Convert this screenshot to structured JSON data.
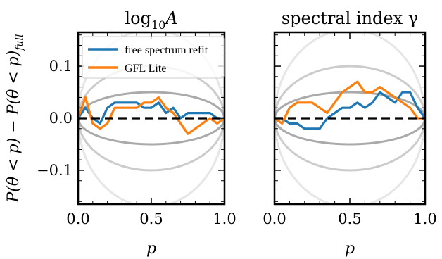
{
  "ylabel": "P(θ < p) − P(θ < p)",
  "ylabel_sub": "full",
  "chart_data": [
    {
      "type": "line",
      "title_main": "log",
      "title_sub": "10",
      "title_var": "A",
      "xlabel": "p",
      "xlim": [
        0,
        1
      ],
      "ylim": [
        -0.165,
        0.165
      ],
      "xticks": [
        0.0,
        0.5,
        1.0
      ],
      "xtick_labels": [
        "0.0",
        "0.5",
        "1.0"
      ],
      "yticks": [
        -0.1,
        0.0,
        0.1
      ],
      "ytick_labels": [
        "−0.1",
        "0.0",
        "0.1"
      ],
      "grid": false,
      "legend_position": "top-left",
      "series": [
        {
          "name": "free spectrum refit",
          "color": "#1f77b4",
          "x": [
            0,
            0.05,
            0.1,
            0.15,
            0.2,
            0.25,
            0.3,
            0.35,
            0.4,
            0.45,
            0.5,
            0.55,
            0.6,
            0.65,
            0.7,
            0.75,
            0.8,
            0.85,
            0.9,
            0.95,
            1.0
          ],
          "y": [
            0.0,
            0.02,
            0.0,
            -0.01,
            0.02,
            0.03,
            0.03,
            0.03,
            0.03,
            0.02,
            0.02,
            0.03,
            0.01,
            0.02,
            0.0,
            0.01,
            0.01,
            0.01,
            0.01,
            0.0,
            0.0
          ]
        },
        {
          "name": "GFL Lite",
          "color": "#ff7f0e",
          "x": [
            0,
            0.05,
            0.1,
            0.15,
            0.2,
            0.25,
            0.3,
            0.35,
            0.4,
            0.45,
            0.5,
            0.55,
            0.6,
            0.65,
            0.7,
            0.75,
            0.8,
            0.85,
            0.9,
            0.95,
            1.0
          ],
          "y": [
            0.0,
            0.04,
            -0.01,
            -0.02,
            -0.01,
            0.02,
            0.02,
            0.02,
            0.02,
            0.03,
            0.03,
            0.04,
            0.02,
            0.01,
            -0.01,
            -0.03,
            -0.02,
            -0.01,
            0.0,
            -0.01,
            0.0
          ]
        }
      ]
    },
    {
      "type": "line",
      "title": "spectral index γ",
      "xlabel": "p",
      "xlim": [
        0,
        1
      ],
      "ylim": [
        -0.165,
        0.165
      ],
      "xticks": [
        0.0,
        0.5,
        1.0
      ],
      "xtick_labels": [
        "0.0",
        "0.5",
        "1.0"
      ],
      "grid": false,
      "series": [
        {
          "color": "#1f77b4",
          "x": [
            0,
            0.05,
            0.1,
            0.15,
            0.2,
            0.25,
            0.3,
            0.35,
            0.4,
            0.45,
            0.5,
            0.55,
            0.6,
            0.65,
            0.7,
            0.75,
            0.8,
            0.85,
            0.9,
            0.95,
            1.0
          ],
          "y": [
            0.0,
            0.0,
            -0.01,
            -0.01,
            -0.02,
            -0.02,
            -0.02,
            0.0,
            0.01,
            0.02,
            0.02,
            0.03,
            0.02,
            0.03,
            0.05,
            0.04,
            0.03,
            0.05,
            0.05,
            0.02,
            0.0
          ]
        },
        {
          "color": "#ff7f0e",
          "x": [
            0,
            0.05,
            0.1,
            0.15,
            0.2,
            0.25,
            0.3,
            0.35,
            0.4,
            0.45,
            0.5,
            0.55,
            0.6,
            0.65,
            0.7,
            0.75,
            0.8,
            0.85,
            0.9,
            0.95,
            1.0
          ],
          "y": [
            0.0,
            -0.01,
            0.02,
            0.03,
            0.03,
            0.03,
            0.02,
            0.01,
            0.03,
            0.05,
            0.06,
            0.07,
            0.05,
            0.05,
            0.06,
            0.05,
            0.04,
            0.03,
            0.02,
            0.0,
            0.0
          ]
        }
      ]
    }
  ],
  "colors": {
    "zero_line": "#000000",
    "band_68": "#aaaaaa",
    "band_95": "#cccccc",
    "band_997": "#e6e6e6"
  },
  "credible_band_half_widths": [
    0.05,
    0.1,
    0.17
  ]
}
